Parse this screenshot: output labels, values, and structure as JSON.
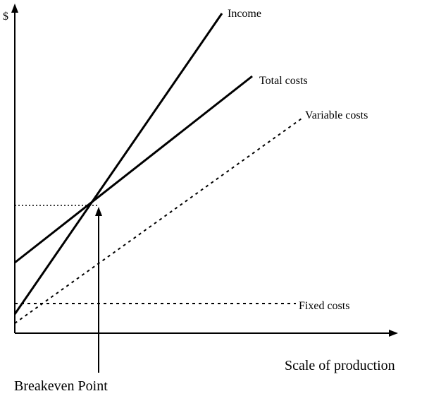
{
  "diagram": {
    "y_axis_label": "$",
    "x_axis_label": "Scale of production",
    "breakeven_label": "Breakeven Point",
    "lines": {
      "income": {
        "label": "Income",
        "style": "solid"
      },
      "total_costs": {
        "label": "Total costs",
        "style": "solid"
      },
      "variable_costs": {
        "label": "Variable costs",
        "style": "dotted"
      },
      "fixed_costs": {
        "label": "Fixed costs",
        "style": "dotted"
      }
    },
    "colors": {
      "line": "#000000",
      "background": "#ffffff"
    }
  }
}
